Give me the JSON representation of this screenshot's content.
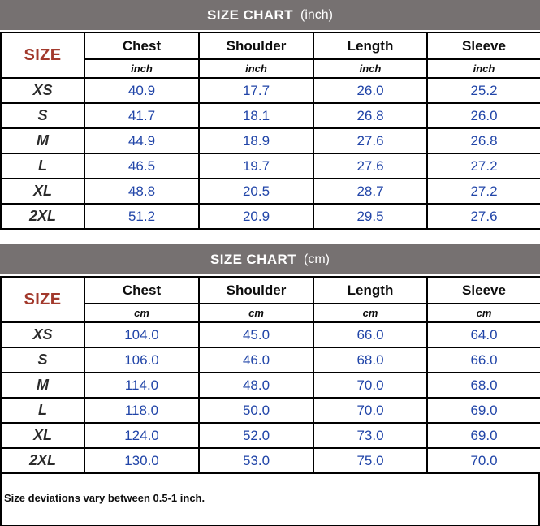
{
  "colors": {
    "title_bar_bg": "#767171",
    "title_text": "#ffffff",
    "size_header_text": "#A2392C",
    "value_text": "#2145A8",
    "border": "#000000",
    "background": "#ffffff"
  },
  "chart_data": [
    {
      "type": "table",
      "title": "SIZE CHART",
      "unit_label": "(inch)",
      "corner_label": "SIZE",
      "unit": "inch",
      "columns": [
        "Chest",
        "Shoulder",
        "Length",
        "Sleeve"
      ],
      "rows": [
        {
          "size": "XS",
          "values": [
            "40.9",
            "17.7",
            "26.0",
            "25.2"
          ]
        },
        {
          "size": "S",
          "values": [
            "41.7",
            "18.1",
            "26.8",
            "26.0"
          ]
        },
        {
          "size": "M",
          "values": [
            "44.9",
            "18.9",
            "27.6",
            "26.8"
          ]
        },
        {
          "size": "L",
          "values": [
            "46.5",
            "19.7",
            "27.6",
            "27.2"
          ]
        },
        {
          "size": "XL",
          "values": [
            "48.8",
            "20.5",
            "28.7",
            "27.2"
          ]
        },
        {
          "size": "2XL",
          "values": [
            "51.2",
            "20.9",
            "29.5",
            "27.6"
          ]
        }
      ]
    },
    {
      "type": "table",
      "title": "SIZE CHART",
      "unit_label": "(cm)",
      "corner_label": "SIZE",
      "unit": "cm",
      "columns": [
        "Chest",
        "Shoulder",
        "Length",
        "Sleeve"
      ],
      "rows": [
        {
          "size": "XS",
          "values": [
            "104.0",
            "45.0",
            "66.0",
            "64.0"
          ]
        },
        {
          "size": "S",
          "values": [
            "106.0",
            "46.0",
            "68.0",
            "66.0"
          ]
        },
        {
          "size": "M",
          "values": [
            "114.0",
            "48.0",
            "70.0",
            "68.0"
          ]
        },
        {
          "size": "L",
          "values": [
            "118.0",
            "50.0",
            "70.0",
            "69.0"
          ]
        },
        {
          "size": "XL",
          "values": [
            "124.0",
            "52.0",
            "73.0",
            "69.0"
          ]
        },
        {
          "size": "2XL",
          "values": [
            "130.0",
            "53.0",
            "75.0",
            "70.0"
          ]
        }
      ]
    }
  ],
  "footnote": "Size deviations vary between 0.5-1 inch."
}
